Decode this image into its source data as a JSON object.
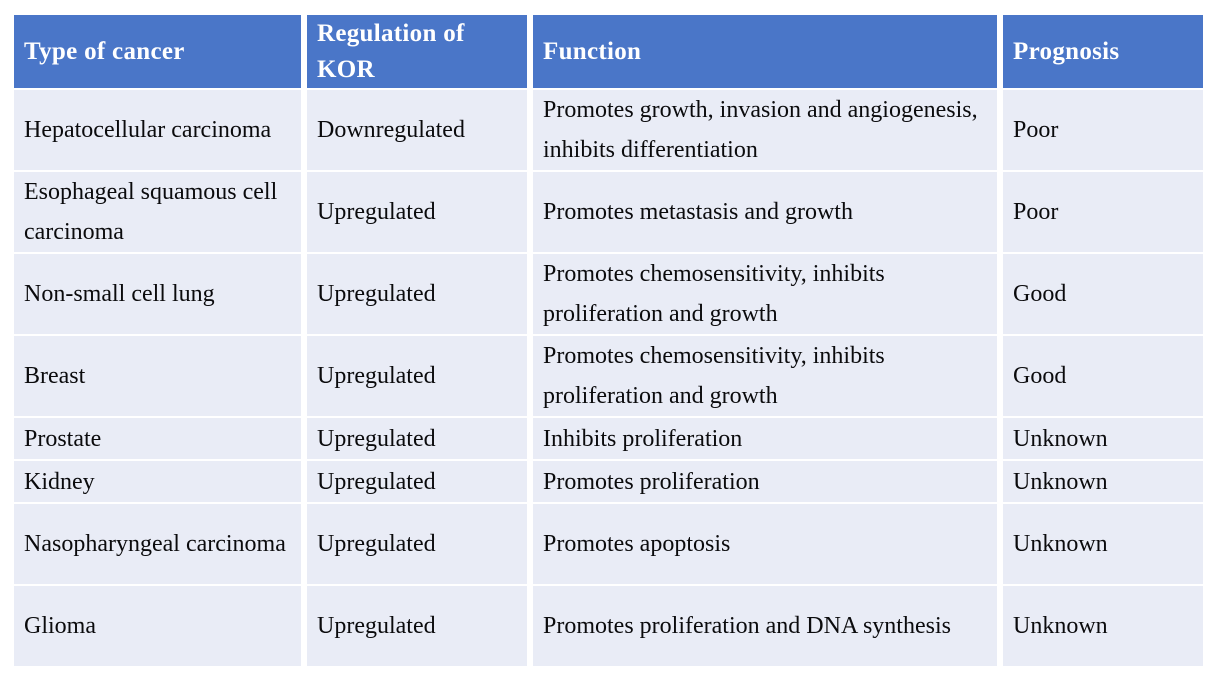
{
  "colors": {
    "header_bg": "#4a76c8",
    "row_bg": "#e9ecf6",
    "header_text": "#ffffff",
    "body_text": "#0b0b0d",
    "page_bg": "#ffffff",
    "divider": "#ffffff"
  },
  "chart_data": {
    "type": "table",
    "columns": [
      "Type of cancer",
      "Regulation of KOR",
      "Function",
      "Prognosis"
    ],
    "rows": [
      [
        "Hepatocellular carcinoma",
        "Downregulated",
        "Promotes growth, invasion and angiogenesis, inhibits differentiation",
        "Poor"
      ],
      [
        "Esophageal squamous cell carcinoma",
        "Upregulated",
        "Promotes metastasis and growth",
        "Poor"
      ],
      [
        "Non-small cell lung",
        "Upregulated",
        "Promotes chemosensitivity, inhibits proliferation and growth",
        "Good"
      ],
      [
        "Breast",
        "Upregulated",
        "Promotes chemosensitivity, inhibits proliferation and growth",
        "Good"
      ],
      [
        "Prostate",
        "Upregulated",
        "Inhibits proliferation",
        "Unknown"
      ],
      [
        "Kidney",
        "Upregulated",
        "Promotes proliferation",
        "Unknown"
      ],
      [
        "Nasopharyngeal carcinoma",
        "Upregulated",
        "Promotes apoptosis",
        "Unknown"
      ],
      [
        "Glioma",
        "Upregulated",
        "Promotes proliferation and DNA synthesis",
        "Unknown"
      ]
    ]
  }
}
